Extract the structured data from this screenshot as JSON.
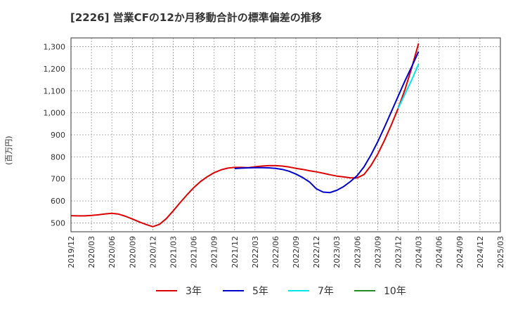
{
  "title": "[2226]  営業CFの12か月移動合計の標準偏差の推移",
  "chart_data": {
    "type": "line",
    "ylabel": "(百万円)",
    "xlabel": "",
    "ylim": [
      460,
      1340
    ],
    "yticks": [
      500,
      600,
      700,
      800,
      900,
      1000,
      1100,
      1200,
      1300
    ],
    "ytick_labels": [
      "500",
      "600",
      "700",
      "800",
      "900",
      "1,000",
      "1,100",
      "1,200",
      "1,300"
    ],
    "xticks": [
      "2019/12",
      "2020/03",
      "2020/06",
      "2020/09",
      "2020/12",
      "2021/03",
      "2021/06",
      "2021/09",
      "2021/12",
      "2022/03",
      "2022/06",
      "2022/09",
      "2022/12",
      "2023/03",
      "2023/06",
      "2023/09",
      "2023/12",
      "2024/03",
      "2024/06",
      "2024/09",
      "2024/12",
      "2025/03"
    ],
    "grid": true,
    "legend_position": "bottom",
    "series": [
      {
        "name": "3年",
        "color": "#dd0000",
        "points": [
          [
            "2019/12",
            533
          ],
          [
            "2020/01",
            532
          ],
          [
            "2020/02",
            532
          ],
          [
            "2020/03",
            534
          ],
          [
            "2020/04",
            537
          ],
          [
            "2020/05",
            541
          ],
          [
            "2020/06",
            544
          ],
          [
            "2020/07",
            540
          ],
          [
            "2020/08",
            530
          ],
          [
            "2020/09",
            518
          ],
          [
            "2020/10",
            505
          ],
          [
            "2020/11",
            493
          ],
          [
            "2020/12",
            483
          ],
          [
            "2021/01",
            494
          ],
          [
            "2021/02",
            520
          ],
          [
            "2021/03",
            555
          ],
          [
            "2021/04",
            592
          ],
          [
            "2021/05",
            627
          ],
          [
            "2021/06",
            660
          ],
          [
            "2021/07",
            688
          ],
          [
            "2021/08",
            710
          ],
          [
            "2021/09",
            728
          ],
          [
            "2021/10",
            741
          ],
          [
            "2021/11",
            749
          ],
          [
            "2021/12",
            752
          ],
          [
            "2022/01",
            752
          ],
          [
            "2022/02",
            751
          ],
          [
            "2022/03",
            755
          ],
          [
            "2022/04",
            758
          ],
          [
            "2022/05",
            760
          ],
          [
            "2022/06",
            760
          ],
          [
            "2022/07",
            758
          ],
          [
            "2022/08",
            754
          ],
          [
            "2022/09",
            748
          ],
          [
            "2022/10",
            743
          ],
          [
            "2022/11",
            737
          ],
          [
            "2022/12",
            732
          ],
          [
            "2023/01",
            726
          ],
          [
            "2023/02",
            719
          ],
          [
            "2023/03",
            713
          ],
          [
            "2023/04",
            709
          ],
          [
            "2023/05",
            705
          ],
          [
            "2023/06",
            705
          ],
          [
            "2023/07",
            720
          ],
          [
            "2023/08",
            760
          ],
          [
            "2023/09",
            812
          ],
          [
            "2023/10",
            875
          ],
          [
            "2023/11",
            945
          ],
          [
            "2023/12",
            1020
          ],
          [
            "2024/01",
            1105
          ],
          [
            "2024/02",
            1205
          ],
          [
            "2024/03",
            1315
          ]
        ]
      },
      {
        "name": "5年",
        "color": "#0000cc",
        "points": [
          [
            "2021/12",
            747
          ],
          [
            "2022/01",
            749
          ],
          [
            "2022/02",
            750
          ],
          [
            "2022/03",
            751
          ],
          [
            "2022/04",
            751
          ],
          [
            "2022/05",
            750
          ],
          [
            "2022/06",
            748
          ],
          [
            "2022/07",
            743
          ],
          [
            "2022/08",
            735
          ],
          [
            "2022/09",
            722
          ],
          [
            "2022/10",
            706
          ],
          [
            "2022/11",
            686
          ],
          [
            "2022/12",
            655
          ],
          [
            "2023/01",
            640
          ],
          [
            "2023/02",
            638
          ],
          [
            "2023/03",
            648
          ],
          [
            "2023/04",
            665
          ],
          [
            "2023/05",
            688
          ],
          [
            "2023/06",
            715
          ],
          [
            "2023/07",
            755
          ],
          [
            "2023/08",
            808
          ],
          [
            "2023/09",
            868
          ],
          [
            "2023/10",
            935
          ],
          [
            "2023/11",
            1005
          ],
          [
            "2023/12",
            1075
          ],
          [
            "2024/01",
            1145
          ],
          [
            "2024/02",
            1210
          ],
          [
            "2024/03",
            1278
          ]
        ]
      },
      {
        "name": "7年",
        "color": "#00e5ee",
        "points": [
          [
            "2023/12",
            1020
          ],
          [
            "2024/01",
            1085
          ],
          [
            "2024/02",
            1150
          ],
          [
            "2024/03",
            1222
          ]
        ]
      },
      {
        "name": "10年",
        "color": "#228b22",
        "points": []
      }
    ]
  }
}
